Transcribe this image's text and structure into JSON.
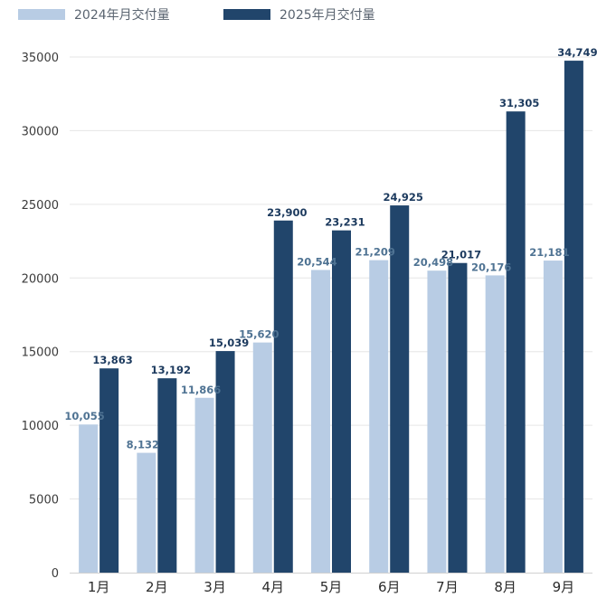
{
  "chart_data": {
    "type": "bar",
    "title": "",
    "xlabel": "",
    "ylabel": "",
    "categories": [
      "1月",
      "2月",
      "3月",
      "4月",
      "5月",
      "6月",
      "7月",
      "8月",
      "9月"
    ],
    "series": [
      {
        "name": "2024年月交付量",
        "color": "#b8cce4",
        "label_color": "#4f7393",
        "values": [
          10055,
          8132,
          11866,
          15620,
          20544,
          21209,
          20498,
          20176,
          21181
        ],
        "labels": [
          "10,055",
          "8,132",
          "11,866",
          "15,620",
          "20,544",
          "21,209",
          "20,498",
          "20,176",
          "21,181"
        ]
      },
      {
        "name": "2025年月交付量",
        "color": "#21456b",
        "label_color": "#1c3a5e",
        "values": [
          13863,
          13192,
          15039,
          23900,
          23231,
          24925,
          21017,
          31305,
          34749
        ],
        "labels": [
          "13,863",
          "13,192",
          "15,039",
          "23,900",
          "23,231",
          "24,925",
          "21,017",
          "31,305",
          "34,749"
        ]
      }
    ],
    "ylim": [
      0,
      35000
    ],
    "yticks": [
      0,
      5000,
      10000,
      15000,
      20000,
      25000,
      30000,
      35000
    ],
    "ytick_labels": [
      "0",
      "5000",
      "10000",
      "15000",
      "20000",
      "25000",
      "30000",
      "35000"
    ],
    "grid": true,
    "legend_position": "top-left"
  }
}
